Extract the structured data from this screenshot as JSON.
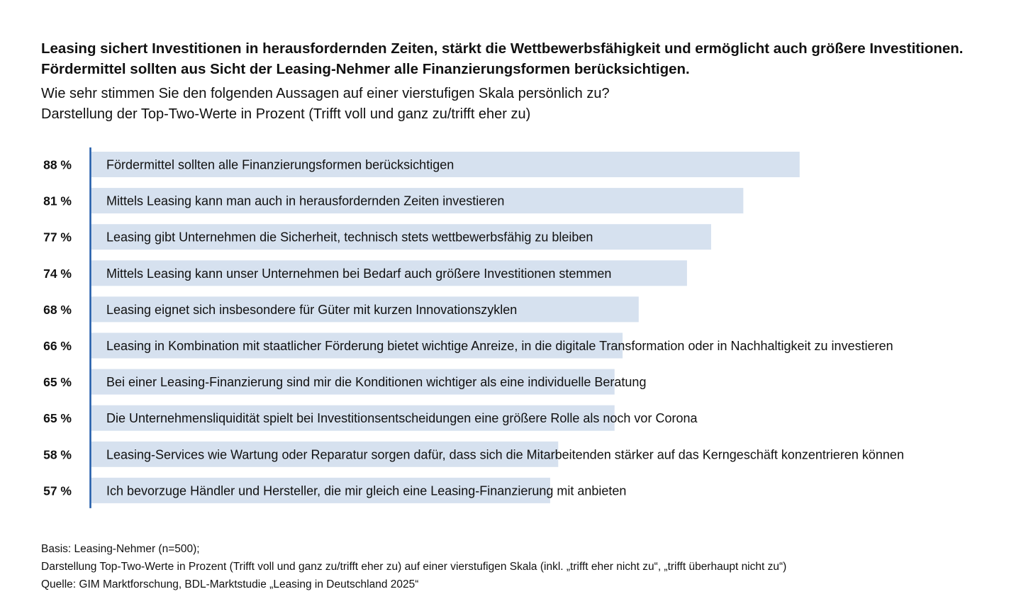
{
  "chart_data": {
    "type": "bar",
    "orientation": "horizontal",
    "title": "Leasing sichert Investitionen in herausfordernden Zeiten, stärkt die Wettbewerbsfähigkeit und ermöglicht auch größere Investitionen. Fördermittel sollten aus Sicht der Leasing-Nehmer alle Finanzierungsformen berücksichtigen.",
    "subtitle_lines": [
      "Wie sehr stimmen Sie den folgenden Aussagen auf einer vierstufigen Skala persönlich zu?",
      "Darstellung der Top-Two-Werte in Prozent (Trifft voll und ganz zu/trifft eher zu)"
    ],
    "categories": [
      "Fördermittel sollten alle Finanzierungsformen berücksichtigen",
      "Mittels Leasing kann man auch in herausfordernden Zeiten investieren",
      "Leasing gibt Unternehmen die Sicherheit, technisch stets wettbewerbsfähig zu bleiben",
      "Mittels Leasing kann unser Unternehmen bei Bedarf auch größere Investitionen stemmen",
      "Leasing eignet sich insbesondere für Güter mit kurzen Innovationszyklen",
      "Leasing in Kombination mit staatlicher Förderung bietet wichtige Anreize, in die digitale Transformation oder in Nachhaltigkeit zu investieren",
      "Bei einer Leasing-Finanzierung sind mir die Konditionen wichtiger als eine individuelle Beratung",
      "Die Unternehmensliquidität spielt bei Investitionsentscheidungen eine größere Rolle als noch vor Corona",
      "Leasing-Services wie Wartung oder Reparatur sorgen dafür, dass sich die Mitarbeitenden stärker auf das Kerngeschäft konzentrieren können",
      "Ich bevorzuge Händler und Hersteller, die mir gleich eine Leasing-Finanzierung mit anbieten"
    ],
    "values": [
      88,
      81,
      77,
      74,
      68,
      66,
      65,
      65,
      58,
      57
    ],
    "value_labels": [
      "88 %",
      "81 %",
      "77 %",
      "74 %",
      "68 %",
      "66 %",
      "65 %",
      "65 %",
      "58 %",
      "57 %"
    ],
    "xlim": [
      0,
      100
    ],
    "grid": false,
    "legend": "none",
    "colors": {
      "bar": "#d6e1ef",
      "axis": "#1f5aa8",
      "text": "#111111"
    }
  },
  "footnote": {
    "lines": [
      "Basis: Leasing-Nehmer (n=500);",
      "Darstellung Top-Two-Werte in Prozent (Trifft voll und ganz zu/trifft eher zu) auf einer vierstufigen Skala (inkl. „trifft eher nicht zu“, „trifft überhaupt nicht zu“)",
      "Quelle: GIM Marktforschung, BDL-Marktstudie „Leasing in Deutschland 2025“"
    ]
  }
}
